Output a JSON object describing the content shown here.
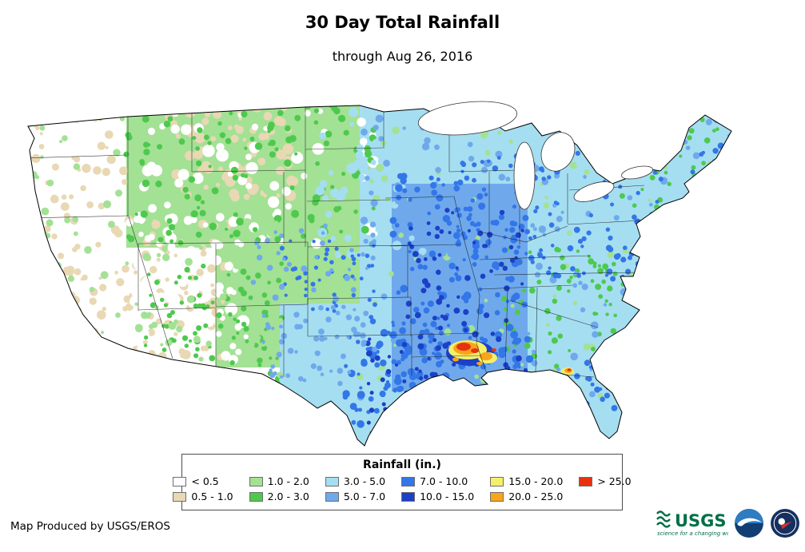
{
  "header": {
    "title": "30 Day Total Rainfall",
    "subtitle": "through Aug 26, 2016"
  },
  "legend": {
    "title": "Rainfall (in.)",
    "items": [
      {
        "label": "< 0.5",
        "color": "#FFFFFF"
      },
      {
        "label": "0.5 - 1.0",
        "color": "#E8D8B4"
      },
      {
        "label": "1.0 - 2.0",
        "color": "#A3E195"
      },
      {
        "label": "2.0 - 3.0",
        "color": "#4EC94E"
      },
      {
        "label": "3.0 - 5.0",
        "color": "#A5DEF1"
      },
      {
        "label": "5.0 - 7.0",
        "color": "#6FA9EC"
      },
      {
        "label": "7.0 - 10.0",
        "color": "#3376E8"
      },
      {
        "label": "10.0 - 15.0",
        "color": "#1C40C6"
      },
      {
        "label": "15.0 - 20.0",
        "color": "#F4F06A"
      },
      {
        "label": "20.0 - 25.0",
        "color": "#FAA41A"
      },
      {
        "label": "> 25.0",
        "color": "#E63211"
      }
    ]
  },
  "footer": {
    "credit": "Map Produced by USGS/EROS"
  },
  "logos": {
    "usgs_text": "USGS",
    "usgs_tagline": "science for a changing world",
    "usgs_color": "#006F45",
    "noaa_icon": "noaa-seagull-emblem",
    "nws_icon": "national-weather-service-emblem"
  }
}
